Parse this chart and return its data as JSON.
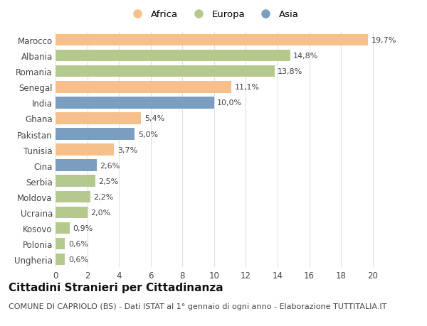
{
  "countries": [
    "Marocco",
    "Albania",
    "Romania",
    "Senegal",
    "India",
    "Ghana",
    "Pakistan",
    "Tunisia",
    "Cina",
    "Serbia",
    "Moldova",
    "Ucraina",
    "Kosovo",
    "Polonia",
    "Ungheria"
  ],
  "values": [
    19.7,
    14.8,
    13.8,
    11.1,
    10.0,
    5.4,
    5.0,
    3.7,
    2.6,
    2.5,
    2.2,
    2.0,
    0.9,
    0.6,
    0.6
  ],
  "labels": [
    "19,7%",
    "14,8%",
    "13,8%",
    "11,1%",
    "10,0%",
    "5,4%",
    "5,0%",
    "3,7%",
    "2,6%",
    "2,5%",
    "2,2%",
    "2,0%",
    "0,9%",
    "0,6%",
    "0,6%"
  ],
  "continents": [
    "Africa",
    "Europa",
    "Europa",
    "Africa",
    "Asia",
    "Africa",
    "Asia",
    "Africa",
    "Asia",
    "Europa",
    "Europa",
    "Europa",
    "Europa",
    "Europa",
    "Europa"
  ],
  "colors": {
    "Africa": "#F5C08A",
    "Europa": "#B5C98E",
    "Asia": "#7B9DC0"
  },
  "legend_order": [
    "Africa",
    "Europa",
    "Asia"
  ],
  "xlim": [
    0,
    21
  ],
  "xticks": [
    0,
    2,
    4,
    6,
    8,
    10,
    12,
    14,
    16,
    18,
    20
  ],
  "title": "Cittadini Stranieri per Cittadinanza",
  "subtitle": "COMUNE DI CAPRIOLO (BS) - Dati ISTAT al 1° gennaio di ogni anno - Elaborazione TUTTITALIA.IT",
  "background_color": "#ffffff",
  "grid_color": "#e0e0e0",
  "bar_height": 0.75,
  "label_fontsize": 8,
  "title_fontsize": 11,
  "subtitle_fontsize": 8,
  "tick_fontsize": 8.5
}
